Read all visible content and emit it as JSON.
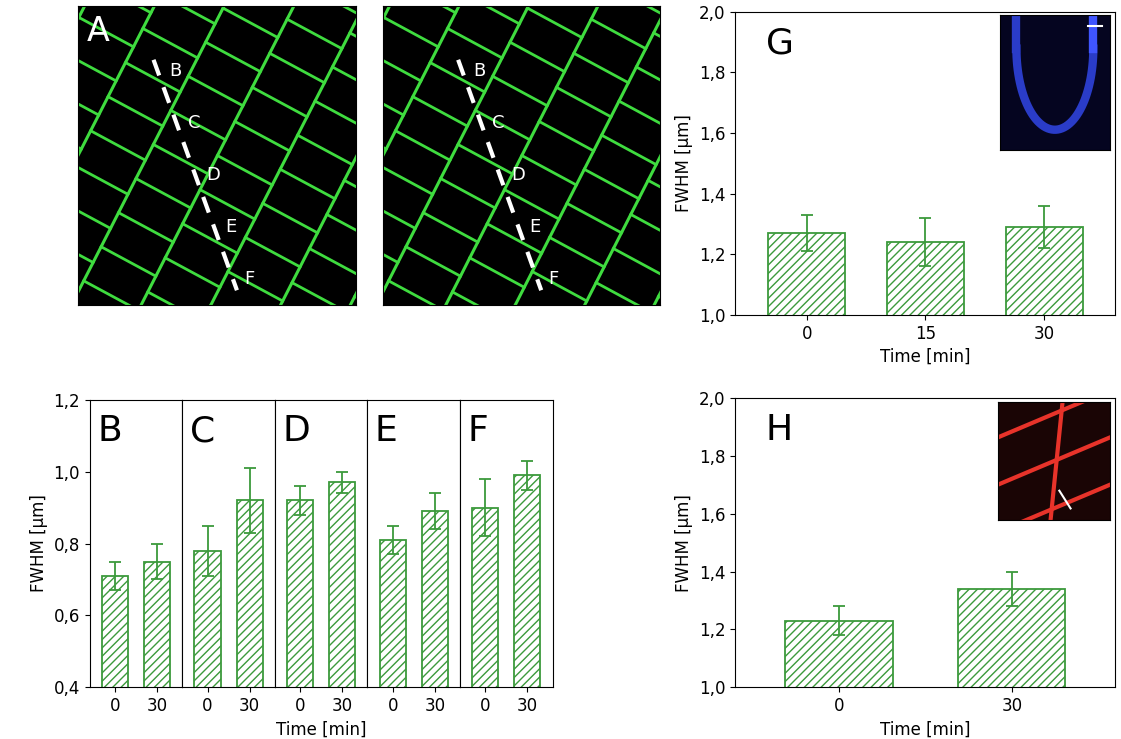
{
  "images": [
    {
      "label": "A",
      "markers": [
        "B",
        "C",
        "D",
        "E",
        "F"
      ]
    },
    {
      "markers": [
        "B",
        "C",
        "D",
        "E",
        "F"
      ]
    }
  ],
  "chart_data": [
    {
      "type": "bar",
      "title": "B",
      "categories": [
        "0",
        "30"
      ],
      "values": [
        0.71,
        0.75
      ],
      "errors": [
        0.04,
        0.05
      ],
      "ylim": [
        0.4,
        1.2
      ],
      "yticks": [
        {
          "value": 0.4,
          "label": "0,4"
        },
        {
          "value": 0.6,
          "label": "0,6"
        },
        {
          "value": 0.8,
          "label": "0,8"
        },
        {
          "value": 1.0,
          "label": "1,0"
        },
        {
          "value": 1.2,
          "label": "1,2"
        }
      ],
      "y_label": "FWHM [µm]",
      "color": "#3c9a3c"
    },
    {
      "type": "bar",
      "title": "C",
      "categories": [
        "0",
        "30"
      ],
      "values": [
        0.78,
        0.92
      ],
      "errors": [
        0.07,
        0.09
      ],
      "ylim": [
        0.4,
        1.2
      ],
      "yticks": [
        {
          "value": 0.4,
          "label": "0,4"
        },
        {
          "value": 0.6,
          "label": "0,6"
        },
        {
          "value": 0.8,
          "label": "0,8"
        },
        {
          "value": 1.0,
          "label": "1,0"
        },
        {
          "value": 1.2,
          "label": "1,2"
        }
      ],
      "tick_labels": "x",
      "color": "#3c9a3c"
    },
    {
      "type": "bar",
      "title": "D",
      "categories": [
        "0",
        "30"
      ],
      "values": [
        0.92,
        0.97
      ],
      "errors": [
        0.04,
        0.03
      ],
      "ylim": [
        0.4,
        1.2
      ],
      "yticks": [
        {
          "value": 0.4,
          "label": "0,4"
        },
        {
          "value": 0.6,
          "label": "0,6"
        },
        {
          "value": 0.8,
          "label": "0,8"
        },
        {
          "value": 1.0,
          "label": "1,0"
        },
        {
          "value": 1.2,
          "label": "1,2"
        }
      ],
      "tick_labels": "x",
      "x_label": "Time [min]",
      "color": "#3c9a3c"
    },
    {
      "type": "bar",
      "title": "E",
      "categories": [
        "0",
        "30"
      ],
      "values": [
        0.81,
        0.89
      ],
      "errors": [
        0.04,
        0.05
      ],
      "ylim": [
        0.4,
        1.2
      ],
      "yticks": [
        {
          "value": 0.4,
          "label": "0,4"
        },
        {
          "value": 0.6,
          "label": "0,6"
        },
        {
          "value": 0.8,
          "label": "0,8"
        },
        {
          "value": 1.0,
          "label": "1,0"
        },
        {
          "value": 1.2,
          "label": "1,2"
        }
      ],
      "tick_labels": "x",
      "color": "#3c9a3c"
    },
    {
      "type": "bar",
      "title": "F",
      "categories": [
        "0",
        "30"
      ],
      "values": [
        0.9,
        0.99
      ],
      "errors": [
        0.08,
        0.04
      ],
      "ylim": [
        0.4,
        1.2
      ],
      "yticks": [
        {
          "value": 0.4,
          "label": "0,4"
        },
        {
          "value": 0.6,
          "label": "0,6"
        },
        {
          "value": 0.8,
          "label": "0,8"
        },
        {
          "value": 1.0,
          "label": "1,0"
        },
        {
          "value": 1.2,
          "label": "1,2"
        }
      ],
      "tick_labels": "x",
      "color": "#3c9a3c"
    },
    {
      "type": "bar",
      "title": "G",
      "categories": [
        "0",
        "15",
        "30"
      ],
      "values": [
        1.27,
        1.24,
        1.29
      ],
      "errors": [
        0.06,
        0.08,
        0.07
      ],
      "ylim": [
        1.0,
        2.0
      ],
      "yticks": [
        {
          "value": 1.0,
          "label": "1,0"
        },
        {
          "value": 1.2,
          "label": "1,2"
        },
        {
          "value": 1.4,
          "label": "1,4"
        },
        {
          "value": 1.6,
          "label": "1,6"
        },
        {
          "value": 1.8,
          "label": "1,8"
        },
        {
          "value": 2.0,
          "label": "2,0"
        }
      ],
      "x_label": "Time [min]",
      "y_label": "FWHM [µm]",
      "color": "#3c9a3c"
    },
    {
      "type": "bar",
      "title": "H",
      "categories": [
        "0",
        "30"
      ],
      "values": [
        1.23,
        1.34
      ],
      "errors": [
        0.05,
        0.06
      ],
      "ylim": [
        1.0,
        2.0
      ],
      "yticks": [
        {
          "value": 1.0,
          "label": "1,0"
        },
        {
          "value": 1.2,
          "label": "1,2"
        },
        {
          "value": 1.4,
          "label": "1,4"
        },
        {
          "value": 1.6,
          "label": "1,6"
        },
        {
          "value": 1.8,
          "label": "1,8"
        },
        {
          "value": 2.0,
          "label": "2,0"
        }
      ],
      "x_label": "Time [min]",
      "y_label": "FWHM [µm]",
      "color": "#3c9a3c"
    }
  ]
}
